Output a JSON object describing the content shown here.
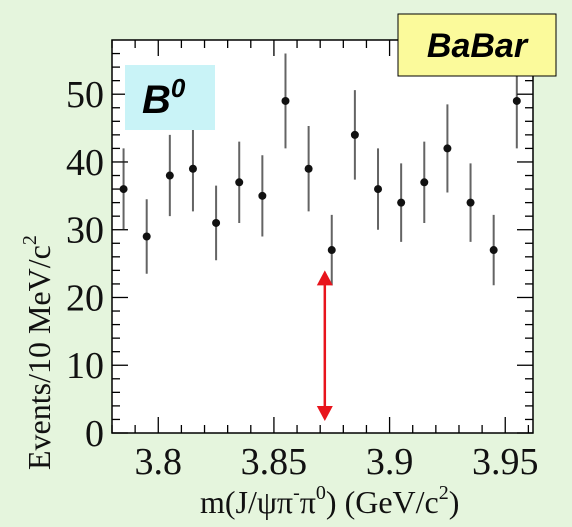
{
  "chart_data": {
    "type": "scatter",
    "style": "points-with-error-bars",
    "xlabel_parts": [
      "m(J/ψπ",
      "-",
      "π",
      "0",
      ") (GeV/c",
      "2",
      ")"
    ],
    "ylabel_parts": [
      "Events/10 MeV/c",
      "2"
    ],
    "x_ticks": [
      "3.8",
      "3.85",
      "3.9",
      "3.95"
    ],
    "y_ticks": [
      "0",
      "10",
      "20",
      "30",
      "40",
      "50"
    ],
    "xlim": [
      3.78,
      3.962
    ],
    "ylim": [
      0,
      58
    ],
    "points": [
      {
        "x": 3.785,
        "y": 36,
        "err_lo": 6,
        "err_hi": 6
      },
      {
        "x": 3.795,
        "y": 29,
        "err_lo": 5.5,
        "err_hi": 5.5
      },
      {
        "x": 3.805,
        "y": 38,
        "err_lo": 6,
        "err_hi": 6
      },
      {
        "x": 3.815,
        "y": 39,
        "err_lo": 6.3,
        "err_hi": 6.3
      },
      {
        "x": 3.825,
        "y": 31,
        "err_lo": 5.5,
        "err_hi": 5.5
      },
      {
        "x": 3.835,
        "y": 37,
        "err_lo": 6,
        "err_hi": 6
      },
      {
        "x": 3.845,
        "y": 35,
        "err_lo": 6,
        "err_hi": 6
      },
      {
        "x": 3.855,
        "y": 49,
        "err_lo": 7,
        "err_hi": 7
      },
      {
        "x": 3.865,
        "y": 39,
        "err_lo": 6.3,
        "err_hi": 6.3
      },
      {
        "x": 3.875,
        "y": 27,
        "err_lo": 5.2,
        "err_hi": 5.2
      },
      {
        "x": 3.885,
        "y": 44,
        "err_lo": 6.6,
        "err_hi": 6.6
      },
      {
        "x": 3.895,
        "y": 36,
        "err_lo": 6,
        "err_hi": 6
      },
      {
        "x": 3.905,
        "y": 34,
        "err_lo": 5.8,
        "err_hi": 5.8
      },
      {
        "x": 3.915,
        "y": 37,
        "err_lo": 6,
        "err_hi": 6
      },
      {
        "x": 3.925,
        "y": 42,
        "err_lo": 6.5,
        "err_hi": 6.5
      },
      {
        "x": 3.935,
        "y": 34,
        "err_lo": 5.8,
        "err_hi": 5.8
      },
      {
        "x": 3.945,
        "y": 27,
        "err_lo": 5.2,
        "err_hi": 5.2
      },
      {
        "x": 3.955,
        "y": 49,
        "err_lo": 7,
        "err_hi": 7
      }
    ],
    "annotation_arrow": {
      "x": 3.872,
      "y_from": 0,
      "y_to": 24,
      "color": "#e8141c"
    },
    "experiment_label": "BaBar",
    "channel_label": {
      "base": "B",
      "sup": "0"
    },
    "colors": {
      "background": "#e5f5dd",
      "plot_area": "#ffffff",
      "babar_box": "#fbfa9b",
      "channel_box": "#c9f3f7",
      "points": "#111111",
      "error_bars": "#222222",
      "arrow": "#e8141c"
    }
  }
}
